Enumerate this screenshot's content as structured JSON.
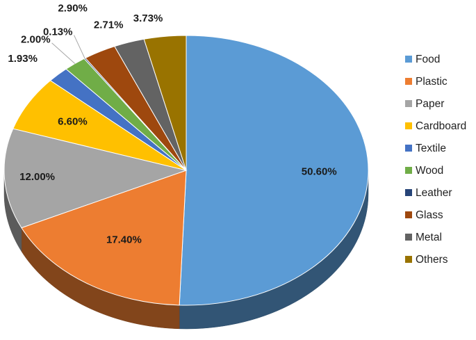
{
  "chart_data": {
    "type": "pie",
    "style": "3d",
    "categories": [
      "Food",
      "Plastic",
      "Paper",
      "Cardboard",
      "Textile",
      "Wood",
      "Leather",
      "Glass",
      "Metal",
      "Others"
    ],
    "values": [
      50.6,
      17.4,
      12.0,
      6.6,
      1.93,
      2.0,
      0.13,
      2.9,
      2.71,
      3.73
    ],
    "data_labels": [
      "50.60%",
      "17.40%",
      "12.00%",
      "6.60%",
      "1.93%",
      "2.00%",
      "0.13%",
      "2.90%",
      "2.71%",
      "3.73%"
    ],
    "colors": [
      "#5B9BD5",
      "#ED7D31",
      "#A5A5A5",
      "#FFC000",
      "#4472C4",
      "#70AD47",
      "#264478",
      "#9E480E",
      "#636363",
      "#997300"
    ],
    "legend": {
      "position": "right",
      "entries": [
        "Food",
        "Plastic",
        "Paper",
        "Cardboard",
        "Textile",
        "Wood",
        "Leather",
        "Glass",
        "Metal",
        "Others"
      ]
    }
  }
}
